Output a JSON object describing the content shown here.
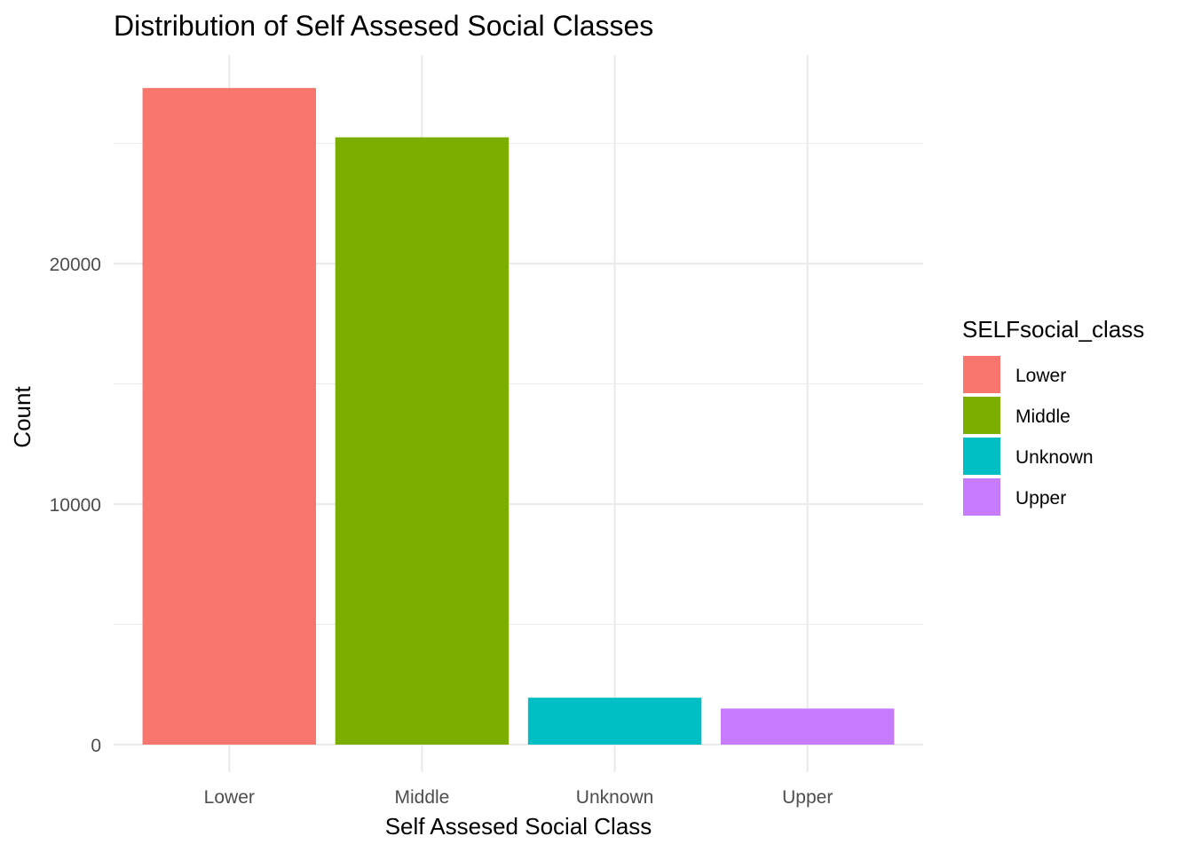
{
  "chart_data": {
    "type": "bar",
    "title": "Distribution of Self Assesed Social Classes",
    "xlabel": "Self Assesed Social Class",
    "ylabel": "Count",
    "categories": [
      "Lower",
      "Middle",
      "Unknown",
      "Upper"
    ],
    "values": [
      27300,
      25250,
      1950,
      1500
    ],
    "colors": [
      "#F8766D",
      "#7CAE00",
      "#00BFC4",
      "#C77CFF"
    ],
    "ylim": [
      0,
      27300
    ],
    "yticks": [
      0,
      10000,
      20000
    ],
    "yticklabels": [
      "0",
      "10000",
      "20000"
    ],
    "grid": true,
    "legend": {
      "title": "SELFsocial_class",
      "placement": "right",
      "entries": [
        "Lower",
        "Middle",
        "Unknown",
        "Upper"
      ]
    }
  }
}
